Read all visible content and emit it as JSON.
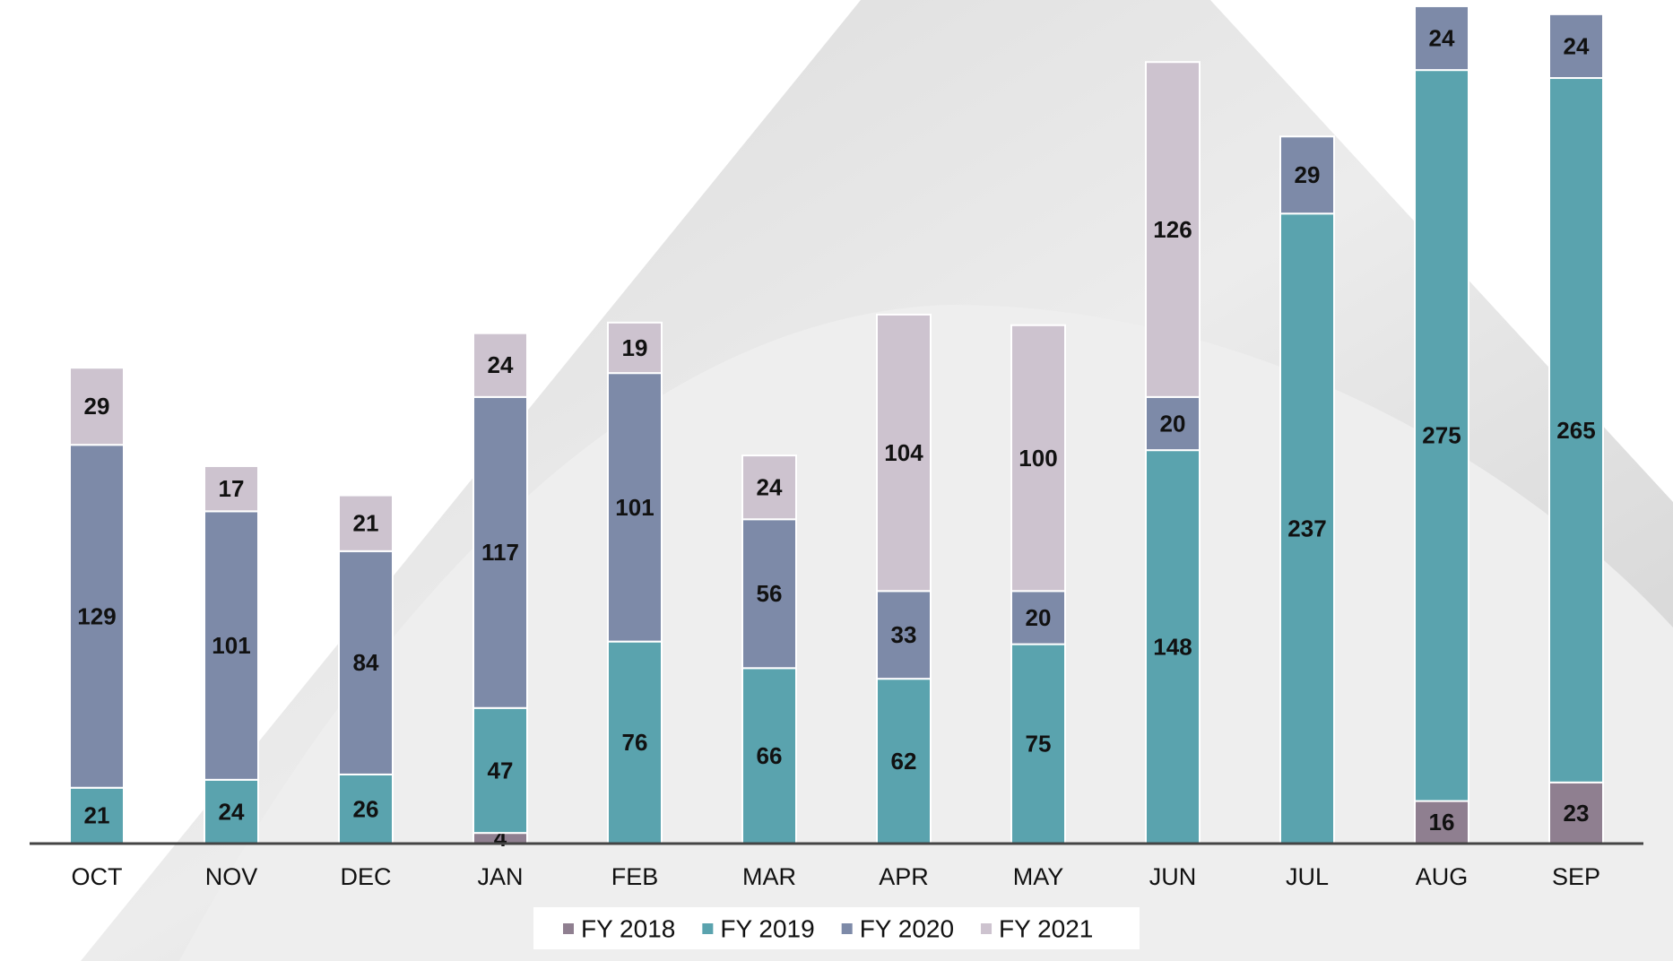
{
  "chart_data": {
    "type": "stacked_bar",
    "categories": [
      "OCT",
      "NOV",
      "DEC",
      "JAN",
      "FEB",
      "MAR",
      "APR",
      "MAY",
      "JUN",
      "JUL",
      "AUG",
      "SEP"
    ],
    "series": [
      {
        "name": "FY 2018",
        "color": "#8f7f90",
        "values": [
          null,
          null,
          null,
          4,
          null,
          null,
          null,
          null,
          null,
          null,
          16,
          23
        ]
      },
      {
        "name": "FY 2019",
        "color": "#5aa3ae",
        "values": [
          21,
          24,
          26,
          47,
          76,
          66,
          62,
          75,
          148,
          237,
          275,
          265
        ]
      },
      {
        "name": "FY 2020",
        "color": "#7d8aa8",
        "values": [
          129,
          101,
          84,
          117,
          101,
          56,
          33,
          20,
          20,
          29,
          24,
          24
        ]
      },
      {
        "name": "FY 2021",
        "color": "#cdc3cf",
        "values": [
          29,
          17,
          21,
          24,
          19,
          24,
          104,
          100,
          126,
          null,
          null,
          null
        ]
      }
    ],
    "ylim": [
      0,
      316
    ],
    "legend": "bottom"
  }
}
